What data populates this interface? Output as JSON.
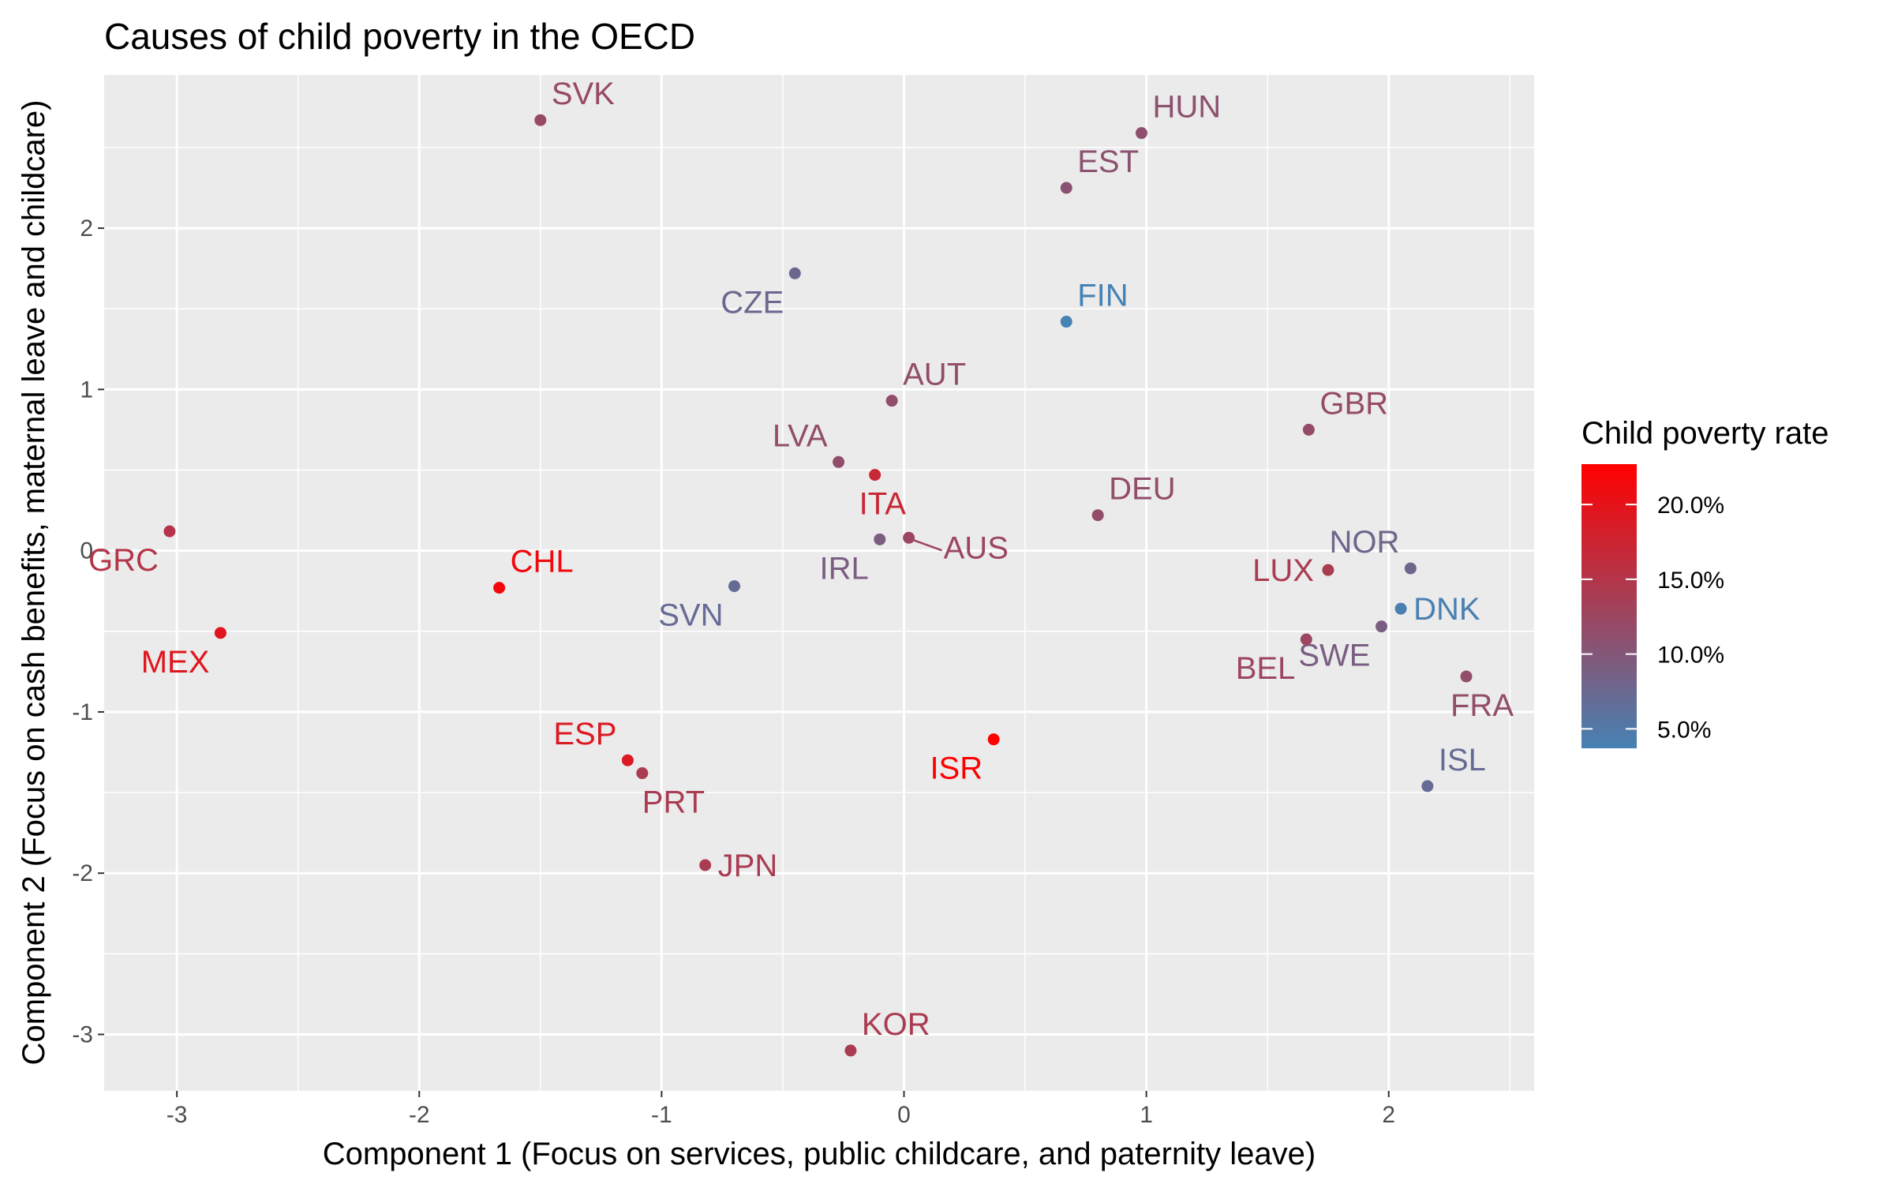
{
  "chart_data": {
    "type": "scatter",
    "title": "Causes of child poverty in the OECD",
    "xlabel": "Component 1 (Focus on services, public childcare, and paternity leave)",
    "ylabel": "Component 2 (Focus on cash benefits, maternal leave and childcare)",
    "xlim": [
      -3.3,
      2.6
    ],
    "ylim": [
      -3.35,
      2.95
    ],
    "x_ticks": [
      -3,
      -2,
      -1,
      0,
      1,
      2
    ],
    "x_tick_labels": [
      "-3",
      "-2",
      "-1",
      "0",
      "1",
      "2"
    ],
    "y_ticks": [
      -3,
      -2,
      -1,
      0,
      1,
      2
    ],
    "y_tick_labels": [
      "-3",
      "-2",
      "-1",
      "0",
      "1",
      "2"
    ],
    "grid": true,
    "panel_background": "#ebebeb",
    "grid_color": "#ffffff",
    "color_scale": {
      "title": "Child poverty rate",
      "low_color": "#4682b4",
      "high_color": "#ff0000",
      "min": 3.7,
      "max": 22.7,
      "breaks": [
        5,
        10,
        15,
        20
      ],
      "break_labels": [
        "5.0%",
        "10.0%",
        "15.0%",
        "20.0%"
      ],
      "legend_position": "right"
    },
    "points": [
      {
        "label": "SVK",
        "x": -1.5,
        "y": 2.67,
        "poverty": 12.0,
        "label_pos": "above-right"
      },
      {
        "label": "HUN",
        "x": 0.98,
        "y": 2.59,
        "poverty": 11.0,
        "label_pos": "above-right"
      },
      {
        "label": "EST",
        "x": 0.67,
        "y": 2.25,
        "poverty": 10.8,
        "label_pos": "above-right"
      },
      {
        "label": "CZE",
        "x": -0.45,
        "y": 1.72,
        "poverty": 7.5,
        "label_pos": "below-left"
      },
      {
        "label": "FIN",
        "x": 0.67,
        "y": 1.42,
        "poverty": 3.7,
        "label_pos": "above-right"
      },
      {
        "label": "AUT",
        "x": -0.05,
        "y": 0.93,
        "poverty": 11.5,
        "label_pos": "above-right"
      },
      {
        "label": "GBR",
        "x": 1.67,
        "y": 0.75,
        "poverty": 11.8,
        "label_pos": "above-right"
      },
      {
        "label": "LVA",
        "x": -0.27,
        "y": 0.55,
        "poverty": 11.5,
        "label_pos": "above-left"
      },
      {
        "label": "ITA",
        "x": -0.12,
        "y": 0.47,
        "poverty": 17.0,
        "label_pos": "below"
      },
      {
        "label": "DEU",
        "x": 0.8,
        "y": 0.22,
        "poverty": 11.5,
        "label_pos": "above-right"
      },
      {
        "label": "GRC",
        "x": -3.03,
        "y": 0.12,
        "poverty": 15.0,
        "label_pos": "below-left"
      },
      {
        "label": "IRL",
        "x": -0.1,
        "y": 0.07,
        "poverty": 9.0,
        "label_pos": "below-left"
      },
      {
        "label": "AUS",
        "x": 0.02,
        "y": 0.08,
        "poverty": 12.5,
        "label_pos": "below-right-leader"
      },
      {
        "label": "CHL",
        "x": -1.67,
        "y": -0.23,
        "poverty": 21.5,
        "label_pos": "above-right"
      },
      {
        "label": "SVN",
        "x": -0.7,
        "y": -0.22,
        "poverty": 7.0,
        "label_pos": "below-left"
      },
      {
        "label": "LUX",
        "x": 1.75,
        "y": -0.12,
        "poverty": 14.0,
        "label_pos": "left"
      },
      {
        "label": "NOR",
        "x": 2.09,
        "y": -0.11,
        "poverty": 8.0,
        "label_pos": "above-left"
      },
      {
        "label": "DNK",
        "x": 2.05,
        "y": -0.36,
        "poverty": 4.0,
        "label_pos": "right"
      },
      {
        "label": "SWE",
        "x": 1.97,
        "y": -0.47,
        "poverty": 9.0,
        "label_pos": "below-left"
      },
      {
        "label": "BEL",
        "x": 1.66,
        "y": -0.55,
        "poverty": 12.5,
        "label_pos": "below-left"
      },
      {
        "label": "MEX",
        "x": -2.82,
        "y": -0.51,
        "poverty": 19.5,
        "label_pos": "below-left"
      },
      {
        "label": "FRA",
        "x": 2.32,
        "y": -0.78,
        "poverty": 11.5,
        "label_pos": "below"
      },
      {
        "label": "ISR",
        "x": 0.37,
        "y": -1.17,
        "poverty": 22.7,
        "label_pos": "below-left"
      },
      {
        "label": "ESP",
        "x": -1.14,
        "y": -1.3,
        "poverty": 19.0,
        "label_pos": "above-left"
      },
      {
        "label": "PRT",
        "x": -1.08,
        "y": -1.38,
        "poverty": 14.0,
        "label_pos": "below-right"
      },
      {
        "label": "ISL",
        "x": 2.16,
        "y": -1.46,
        "poverty": 7.0,
        "label_pos": "above-right"
      },
      {
        "label": "JPN",
        "x": -0.82,
        "y": -1.95,
        "poverty": 14.0,
        "label_pos": "right"
      },
      {
        "label": "KOR",
        "x": -0.22,
        "y": -3.1,
        "poverty": 14.0,
        "label_pos": "above-right"
      }
    ]
  }
}
